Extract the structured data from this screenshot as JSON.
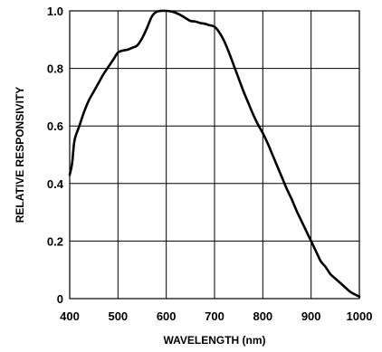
{
  "chart_data": {
    "type": "line",
    "title": "",
    "xlabel": "WAVELENGTH (nm)",
    "ylabel": "RELATIVE RESPONSIVITY",
    "xlim": [
      400,
      1000
    ],
    "ylim": [
      0,
      1.0
    ],
    "grid": true,
    "x_ticks": [
      "400",
      "500",
      "600",
      "700",
      "800",
      "900",
      "1000"
    ],
    "y_ticks": [
      "0",
      "0.2",
      "0.4",
      "0.6",
      "0.8",
      "1.0"
    ],
    "series": [
      {
        "x": [
          400,
          405,
          410,
          420,
          430,
          440,
          450,
          460,
          470,
          480,
          490,
          500,
          510,
          520,
          530,
          540,
          550,
          560,
          570,
          580,
          590,
          600,
          610,
          620,
          630,
          640,
          650,
          660,
          670,
          680,
          690,
          700,
          710,
          720,
          730,
          740,
          750,
          760,
          770,
          780,
          790,
          800,
          810,
          820,
          830,
          840,
          850,
          860,
          870,
          880,
          890,
          900,
          910,
          920,
          930,
          940,
          950,
          960,
          970,
          980,
          990,
          1000
        ],
        "y": [
          0.43,
          0.47,
          0.55,
          0.6,
          0.65,
          0.69,
          0.72,
          0.75,
          0.78,
          0.805,
          0.83,
          0.855,
          0.862,
          0.865,
          0.872,
          0.88,
          0.905,
          0.94,
          0.98,
          0.997,
          1.0,
          1.0,
          0.998,
          0.993,
          0.985,
          0.975,
          0.965,
          0.963,
          0.958,
          0.955,
          0.95,
          0.945,
          0.925,
          0.895,
          0.855,
          0.81,
          0.765,
          0.72,
          0.68,
          0.64,
          0.605,
          0.575,
          0.54,
          0.5,
          0.46,
          0.42,
          0.38,
          0.345,
          0.305,
          0.27,
          0.235,
          0.2,
          0.165,
          0.13,
          0.11,
          0.085,
          0.07,
          0.055,
          0.04,
          0.025,
          0.015,
          0.007
        ],
        "color": "#000000"
      }
    ]
  }
}
